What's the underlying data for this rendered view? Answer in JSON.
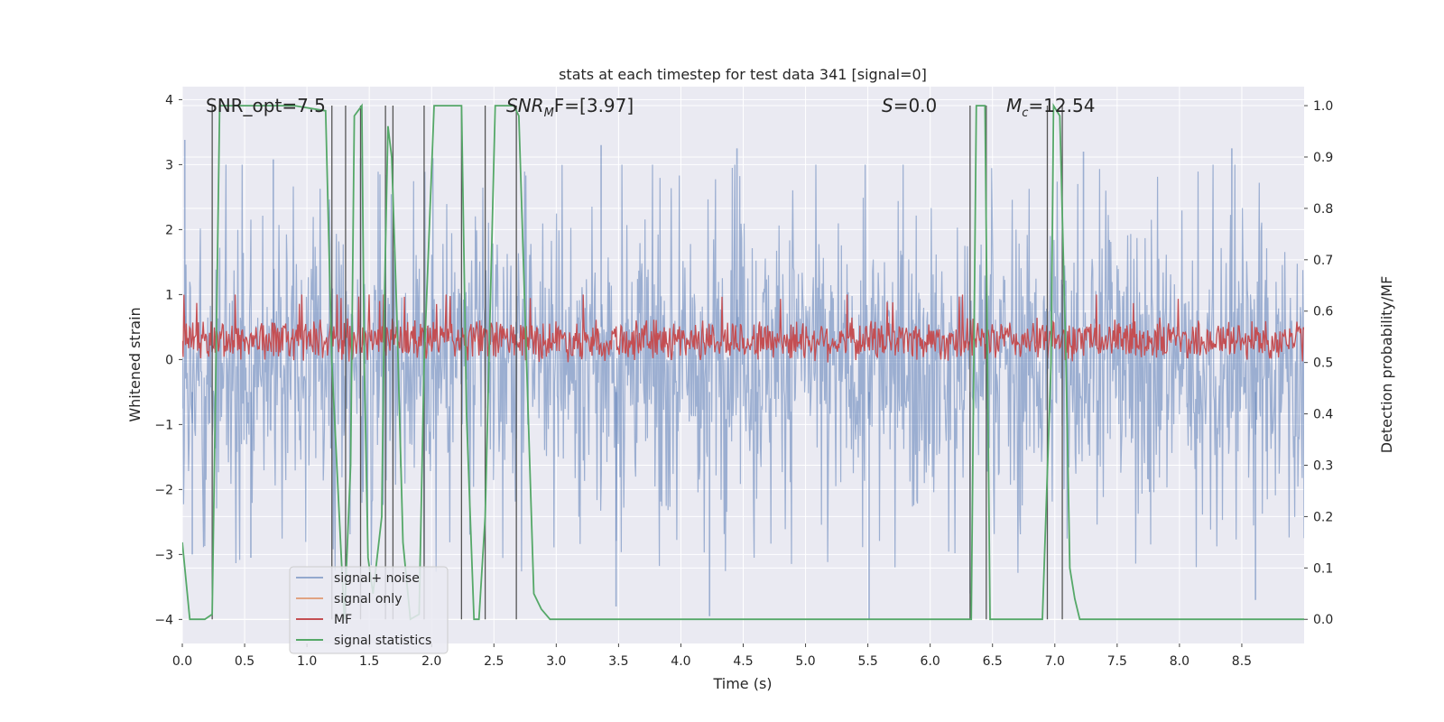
{
  "chart_data": {
    "type": "line",
    "title": "stats at each timestep for test data 341 [signal=0]",
    "xlabel": "Time (s)",
    "ylabel": "Whitened strain",
    "y2label": "Detection probability/MF",
    "xlim": [
      0.0,
      9.0
    ],
    "ylim": [
      -4.37,
      4.2
    ],
    "y2lim": [
      -0.047,
      1.037
    ],
    "x_ticks": [
      0.0,
      0.5,
      1.0,
      1.5,
      2.0,
      2.5,
      3.0,
      3.5,
      4.0,
      4.5,
      5.0,
      5.5,
      6.0,
      6.5,
      7.0,
      7.5,
      8.0,
      8.5
    ],
    "x_tick_labels": [
      "0.0",
      "0.5",
      "1.0",
      "1.5",
      "2.0",
      "2.5",
      "3.0",
      "3.5",
      "4.0",
      "4.5",
      "5.0",
      "5.5",
      "6.0",
      "6.5",
      "7.0",
      "7.5",
      "8.0",
      "8.5"
    ],
    "y_ticks": [
      -4,
      -3,
      -2,
      -1,
      0,
      1,
      2,
      3,
      4
    ],
    "y_tick_labels": [
      "−4",
      "−3",
      "−2",
      "−1",
      "0",
      "1",
      "2",
      "3",
      "4"
    ],
    "y2_ticks": [
      0.0,
      0.1,
      0.2,
      0.3,
      0.4,
      0.5,
      0.6,
      0.7,
      0.8,
      0.9,
      1.0
    ],
    "y2_tick_labels": [
      "0.0",
      "0.1",
      "0.2",
      "0.3",
      "0.4",
      "0.5",
      "0.6",
      "0.7",
      "0.8",
      "0.9",
      "1.0"
    ],
    "annotations": {
      "snr_opt": "SNR_opt=7.5",
      "snr_mf_base": "SNR",
      "snr_mf_sub": "M",
      "snr_mf_rest": "F=[3.97]",
      "s_label": "S",
      "s_value": "=0.0",
      "mc_base": "M",
      "mc_sub": "c",
      "mc_value": "=12.54"
    },
    "series": [
      {
        "name": "signal+ noise",
        "color": "#4c72b0",
        "axis": "left",
        "kind": "noise",
        "amplitude_typical": 2.0,
        "peak_pos": [
          [
            0.02,
            3.38
          ],
          [
            0.73,
            3.08
          ],
          [
            1.43,
            3.1
          ],
          [
            2.01,
            3.1
          ],
          [
            3.36,
            3.3
          ],
          [
            4.45,
            3.25
          ],
          [
            7.23,
            3.2
          ],
          [
            8.42,
            3.25
          ]
        ],
        "peak_neg": [
          [
            0.08,
            -3.0
          ],
          [
            0.55,
            -3.05
          ],
          [
            3.48,
            -3.8
          ],
          [
            4.23,
            -3.95
          ],
          [
            5.51,
            -4.0
          ],
          [
            6.32,
            -3.6
          ],
          [
            8.61,
            -3.7
          ]
        ]
      },
      {
        "name": "signal only",
        "color": "#dd8452",
        "axis": "left",
        "kind": "flat",
        "values": []
      },
      {
        "name": "MF",
        "color": "#c44e52",
        "axis": "left",
        "kind": "mf",
        "center": 0.3,
        "spread": 0.3
      },
      {
        "name": "signal statistics",
        "color": "#55a868",
        "axis": "right",
        "x": [
          0.0,
          0.06,
          0.18,
          0.24,
          0.27,
          0.3,
          0.9,
          1.15,
          1.2,
          1.3,
          1.35,
          1.38,
          1.44,
          1.46,
          1.49,
          1.53,
          1.6,
          1.62,
          1.65,
          1.68,
          1.72,
          1.77,
          1.83,
          1.9,
          1.94,
          2.02,
          2.24,
          2.28,
          2.34,
          2.38,
          2.43,
          2.47,
          2.51,
          2.66,
          2.7,
          2.82,
          2.88,
          2.95,
          3.0,
          6.33,
          6.37,
          6.44,
          6.46,
          6.48,
          6.63,
          6.9,
          6.97,
          6.99,
          7.04,
          7.09,
          7.12,
          7.16,
          7.2,
          9.0
        ],
        "values": [
          0.15,
          0.0,
          0.0,
          0.01,
          0.5,
          1.0,
          1.0,
          0.99,
          0.5,
          0.0,
          0.3,
          0.98,
          1.0,
          0.5,
          0.12,
          0.05,
          0.2,
          0.6,
          0.96,
          0.9,
          0.6,
          0.15,
          0.0,
          0.01,
          0.5,
          1.0,
          1.0,
          0.4,
          0.0,
          0.0,
          0.2,
          0.6,
          1.0,
          1.0,
          0.98,
          0.05,
          0.02,
          0.0,
          0.0,
          0.0,
          1.0,
          1.0,
          0.5,
          0.0,
          0.0,
          0.0,
          0.5,
          1.0,
          0.98,
          0.5,
          0.1,
          0.04,
          0.0,
          0.0
        ]
      }
    ],
    "vertical_lines": {
      "color": "#555555",
      "x": [
        0.24,
        1.2,
        1.31,
        1.43,
        1.63,
        1.69,
        1.94,
        2.24,
        2.43,
        2.68,
        6.32,
        6.45,
        6.94,
        7.06
      ]
    },
    "legend": {
      "location": "lower-left",
      "entries": [
        "signal+ noise",
        "signal only",
        "MF",
        "signal statistics"
      ]
    }
  }
}
